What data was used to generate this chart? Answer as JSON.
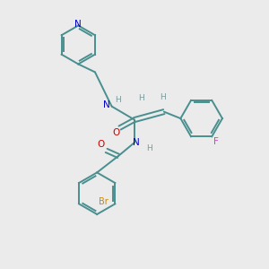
{
  "bg_color": "#ebebeb",
  "bond_color": "#4a8f8f",
  "N_color": "#0000cc",
  "O_color": "#cc0000",
  "Br_color": "#cc8800",
  "F_color": "#cc44cc",
  "H_color": "#7a9a9a",
  "figsize": [
    3.0,
    3.0
  ],
  "dpi": 100,
  "xlim": [
    0,
    10
  ],
  "ylim": [
    0,
    10
  ]
}
